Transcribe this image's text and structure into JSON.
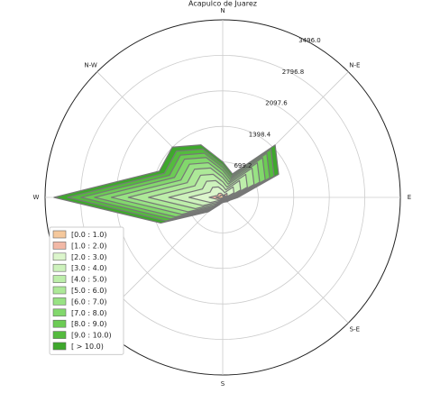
{
  "chart_data": {
    "type": "windrose",
    "title": "Acapulco de Juarez",
    "categories": [
      "N",
      null,
      "N-E",
      null,
      "E",
      null,
      "S-E",
      null,
      "S",
      null,
      null,
      null,
      "W",
      null,
      "N-W",
      null
    ],
    "ylim": [
      0,
      3496
    ],
    "yticks": [
      699.2,
      1398.4,
      2097.6,
      2796.8,
      {
        "value": 3496,
        "label": "3496.0"
      }
    ],
    "grid": true,
    "series": [
      {
        "name": "[0.0 : 1.0)",
        "color": "#f5c89c",
        "values": [
          28,
          20,
          58,
          48,
          12,
          6,
          5,
          4,
          4,
          6,
          16,
          53,
          133,
          54,
          56,
          45
        ]
      },
      {
        "name": "[1.0 : 2.0)",
        "color": "#f2b8a6",
        "values": [
          28,
          20,
          58,
          48,
          12,
          6,
          5,
          4,
          4,
          6,
          16,
          53,
          133,
          54,
          56,
          45
        ]
      },
      {
        "name": "[2.0 : 3.0)",
        "color": "#dcf6cc",
        "values": [
          84,
          60,
          175,
          143,
          36,
          18,
          14,
          12,
          12,
          18,
          48,
          158,
          398,
          162,
          168,
          134
        ]
      },
      {
        "name": "[3.0 : 4.0)",
        "color": "#cdf2bc",
        "values": [
          84,
          60,
          175,
          143,
          36,
          18,
          14,
          12,
          12,
          18,
          48,
          158,
          398,
          162,
          168,
          134
        ]
      },
      {
        "name": "[4.0 : 5.0)",
        "color": "#bdeeaa",
        "values": [
          84,
          60,
          175,
          143,
          36,
          18,
          14,
          12,
          12,
          18,
          48,
          158,
          398,
          162,
          168,
          134
        ]
      },
      {
        "name": "[5.0 : 6.0)",
        "color": "#ade998",
        "values": [
          84,
          60,
          175,
          143,
          36,
          18,
          14,
          12,
          12,
          18,
          48,
          158,
          398,
          162,
          168,
          134
        ]
      },
      {
        "name": "[6.0 : 7.0)",
        "color": "#98e284",
        "values": [
          70,
          50,
          146,
          119,
          30,
          15,
          12,
          10,
          10,
          15,
          40,
          132,
          332,
          135,
          140,
          112
        ]
      },
      {
        "name": "[7.0 : 8.0)",
        "color": "#82d86c",
        "values": [
          70,
          50,
          146,
          119,
          30,
          15,
          12,
          10,
          10,
          15,
          40,
          132,
          332,
          135,
          140,
          112
        ]
      },
      {
        "name": "[8.0 : 9.0)",
        "color": "#6ccc54",
        "values": [
          56,
          40,
          117,
          95,
          24,
          12,
          10,
          8,
          8,
          12,
          32,
          106,
          266,
          108,
          112,
          90
        ]
      },
      {
        "name": "[9.0 : 10.0)",
        "color": "#54bb3e",
        "values": [
          56,
          40,
          117,
          95,
          24,
          12,
          10,
          8,
          8,
          12,
          32,
          106,
          266,
          108,
          112,
          90
        ]
      },
      {
        "name": "[  >  10.0)",
        "color": "#3ea82c",
        "values": [
          56,
          40,
          117,
          95,
          24,
          12,
          10,
          8,
          8,
          12,
          32,
          106,
          266,
          108,
          112,
          90
        ]
      }
    ]
  }
}
